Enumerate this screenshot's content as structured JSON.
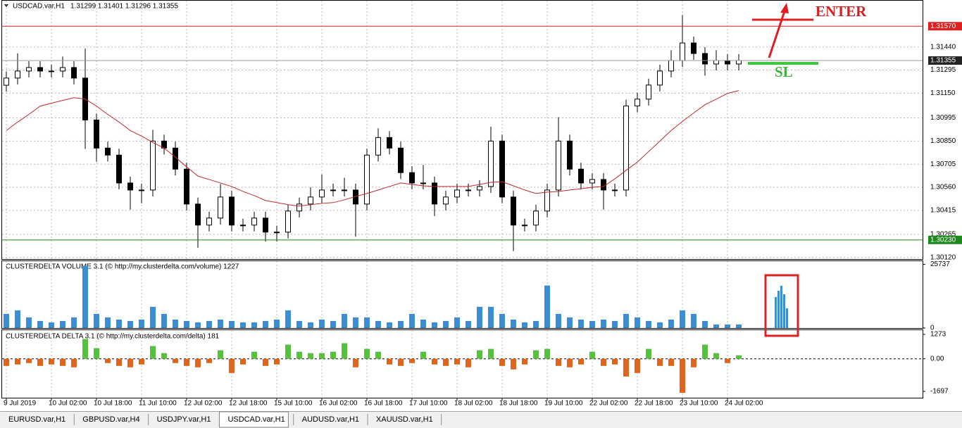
{
  "chart_data": [
    {
      "type": "candlestick",
      "title": "USDCAD.var,H1",
      "quote": "1.31299 1.31401 1.31296 1.31355",
      "categories": [
        "9 Jul 2019",
        null,
        null,
        null,
        "10 Jul 02:00",
        null,
        null,
        null,
        "10 Jul 18:00",
        null,
        null,
        null,
        "11 Jul 10:00",
        null,
        null,
        null,
        "12 Jul 02:00",
        null,
        null,
        null,
        "12 Jul 18:00",
        null,
        null,
        null,
        "15 Jul 10:00",
        null,
        null,
        null,
        "16 Jul 02:00",
        null,
        null,
        null,
        "16 Jul 18:00",
        null,
        null,
        null,
        "17 Jul 10:00",
        null,
        null,
        null,
        "18 Jul 02:00",
        null,
        null,
        null,
        "18 Jul 18:00",
        null,
        null,
        null,
        "19 Jul 10:00",
        null,
        null,
        null,
        "22 Jul 02:00",
        null,
        null,
        null,
        "22 Jul 18:00",
        null,
        null,
        null,
        "23 Jul 10:00",
        null,
        null,
        null,
        "24 Jul 02:00",
        null
      ],
      "open": [
        1.312,
        1.31245,
        1.31289,
        1.31311,
        1.31289,
        1.31289,
        1.31311,
        1.31245,
        1.30982,
        1.30806,
        1.30762,
        1.30587,
        1.30543,
        1.30543,
        1.3085,
        1.30806,
        1.30674,
        1.30455,
        1.30323,
        1.30367,
        1.30499,
        1.30323,
        1.30323,
        1.30367,
        1.30279,
        1.30279,
        1.30411,
        1.30455,
        1.30499,
        1.30543,
        1.30543,
        1.30543,
        1.30455,
        1.30762,
        1.30872,
        1.30806,
        1.30652,
        1.30587,
        1.30587,
        1.30455,
        1.30499,
        1.30543,
        1.30543,
        1.30565,
        1.3085,
        1.30499,
        1.30323,
        1.30323,
        1.30411,
        1.30543,
        1.3085,
        1.30674,
        1.30587,
        1.30609,
        1.30543,
        1.30543,
        1.3107,
        1.31113,
        1.31201,
        1.31289,
        1.31355,
        1.31465,
        1.31399,
        1.31333,
        1.31355,
        1.31333
      ],
      "high": [
        1.31285,
        1.314,
        1.31351,
        1.31351,
        1.31329,
        1.3138,
        1.31351,
        1.3143,
        1.31022,
        1.30846,
        1.30802,
        1.30627,
        1.30583,
        1.3092,
        1.3089,
        1.30846,
        1.30714,
        1.30495,
        1.30407,
        1.3058,
        1.30539,
        1.30363,
        1.30407,
        1.30407,
        1.30319,
        1.30451,
        1.30495,
        1.3056,
        1.3064,
        1.30583,
        1.3062,
        1.30583,
        1.30802,
        1.3093,
        1.30912,
        1.30846,
        1.30692,
        1.307,
        1.30627,
        1.30539,
        1.30583,
        1.30583,
        1.30605,
        1.3094,
        1.3089,
        1.30539,
        1.30363,
        1.30451,
        1.30583,
        1.31,
        1.3089,
        1.30714,
        1.30649,
        1.30649,
        1.30583,
        1.3111,
        1.31153,
        1.31241,
        1.31329,
        1.3142,
        1.3164,
        1.31505,
        1.31439,
        1.3142,
        1.31395,
        1.31395
      ],
      "low": [
        1.3116,
        1.31205,
        1.31249,
        1.31249,
        1.31249,
        1.31249,
        1.31205,
        1.308,
        1.3072,
        1.30722,
        1.30547,
        1.3042,
        1.3046,
        1.30503,
        1.30766,
        1.30634,
        1.30415,
        1.3018,
        1.30283,
        1.30327,
        1.30283,
        1.30283,
        1.30283,
        1.3022,
        1.3022,
        1.30239,
        1.30371,
        1.30415,
        1.30459,
        1.30503,
        1.30503,
        1.3025,
        1.30415,
        1.30722,
        1.30766,
        1.30612,
        1.30547,
        1.30547,
        1.3038,
        1.30415,
        1.30459,
        1.30503,
        1.30503,
        1.30525,
        1.30459,
        1.3016,
        1.30283,
        1.30283,
        1.30371,
        1.30503,
        1.30634,
        1.30547,
        1.30547,
        1.3042,
        1.30503,
        1.30503,
        1.3103,
        1.31073,
        1.31161,
        1.31249,
        1.31315,
        1.31359,
        1.3126,
        1.31293,
        1.31293,
        1.31293
      ],
      "close": [
        1.31245,
        1.31289,
        1.31311,
        1.31289,
        1.31289,
        1.31311,
        1.31245,
        1.30982,
        1.30806,
        1.30762,
        1.30587,
        1.30543,
        1.30543,
        1.3085,
        1.30806,
        1.30674,
        1.30455,
        1.30323,
        1.30367,
        1.30499,
        1.30323,
        1.30323,
        1.30367,
        1.30279,
        1.30279,
        1.30411,
        1.30455,
        1.30499,
        1.30543,
        1.30543,
        1.30543,
        1.30455,
        1.30762,
        1.30872,
        1.30806,
        1.30652,
        1.30587,
        1.30587,
        1.30455,
        1.30499,
        1.30543,
        1.30543,
        1.30565,
        1.3085,
        1.30499,
        1.30323,
        1.30323,
        1.30411,
        1.30543,
        1.3085,
        1.30674,
        1.30587,
        1.30609,
        1.30543,
        1.30543,
        1.3107,
        1.31113,
        1.31201,
        1.31289,
        1.31355,
        1.31465,
        1.31399,
        1.31333,
        1.31355,
        1.31333,
        1.31355
      ],
      "ma_values": [
        1.30916,
        1.30969,
        1.31017,
        1.31069,
        1.31087,
        1.31105,
        1.31122,
        1.31113,
        1.31069,
        1.31017,
        1.30969,
        1.30916,
        1.30881,
        1.30841,
        1.30806,
        1.30749,
        1.30688,
        1.3063,
        1.30609,
        1.30587,
        1.30565,
        1.30534,
        1.30508,
        1.30477,
        1.30464,
        1.30451,
        1.30442,
        1.30451,
        1.30459,
        1.30464,
        1.30481,
        1.30503,
        1.30521,
        1.30543,
        1.30565,
        1.30587,
        1.30578,
        1.30569,
        1.30565,
        1.30565,
        1.30565,
        1.30565,
        1.30578,
        1.30591,
        1.30595,
        1.30569,
        1.30543,
        1.30521,
        1.3053,
        1.30534,
        1.30543,
        1.30551,
        1.3056,
        1.30565,
        1.30613,
        1.30666,
        1.30718,
        1.30784,
        1.3085,
        1.30916,
        1.30973,
        1.31026,
        1.31078,
        1.31113,
        1.31149,
        1.31166
      ],
      "ma_color": "#c0282a",
      "bull_color": "#ffffff",
      "bear_color": "#000000",
      "ylim": [
        1.3011,
        1.3173
      ],
      "yticks": [
        {
          "value": 1.3144,
          "label": "1.31440"
        },
        1.31295,
        {
          "value": 1.3115,
          "label": "1.31150"
        },
        1.30995,
        {
          "value": 1.3085,
          "label": "1.30850"
        },
        1.30705,
        {
          "value": 1.3056,
          "label": "1.30560"
        },
        1.30415,
        1.30265,
        {
          "value": 1.3012,
          "label": "1.30120"
        }
      ],
      "grid": true,
      "hlines": [
        {
          "value": 1.3157,
          "label": "1.31570",
          "color": "#e02020"
        },
        {
          "value": 1.31355,
          "label": "1.31355",
          "color": "#9a9a9a"
        },
        {
          "value": 1.3023,
          "label": "1.30230",
          "color": "#1e8a1e"
        }
      ]
    },
    {
      "type": "bar",
      "title": "CLUSTERDELTA VOLUME 3.1 (© http://my.clusterdelta.com/volume) 1227",
      "values": [
        5720,
        7150,
        4290,
        2860,
        2290,
        2860,
        4290,
        25100,
        5720,
        4290,
        3430,
        2860,
        3430,
        8580,
        5720,
        3430,
        2860,
        2290,
        2860,
        3430,
        2860,
        2290,
        2290,
        2860,
        3430,
        7150,
        2860,
        2290,
        3430,
        2860,
        5720,
        4290,
        4290,
        2860,
        2290,
        2860,
        5720,
        3430,
        2290,
        2860,
        4290,
        2860,
        8580,
        8580,
        5720,
        3430,
        2290,
        2860,
        17160,
        5720,
        4290,
        3430,
        2860,
        3430,
        2860,
        5720,
        4290,
        2860,
        2290,
        3430,
        7150,
        5720,
        2860,
        1430,
        1430,
        1430
      ],
      "color": "#3b8ed6",
      "ylim": [
        0,
        27000
      ],
      "yticks": [
        0,
        25737
      ]
    },
    {
      "type": "bar",
      "title": "CLUSTERDELTA DELTA 3.1 (© http://my.clusterdelta.com/delta) 181",
      "values": [
        -370,
        -296,
        -222,
        -370,
        -296,
        -370,
        -444,
        1036,
        555,
        -222,
        -370,
        -444,
        -296,
        666,
        296,
        -222,
        -370,
        -444,
        -222,
        444,
        -740,
        -296,
        370,
        -370,
        -296,
        740,
        370,
        296,
        296,
        370,
        814,
        -444,
        518,
        370,
        -296,
        -370,
        -222,
        370,
        -296,
        -370,
        -296,
        -444,
        444,
        518,
        -370,
        -555,
        -296,
        444,
        518,
        -370,
        -444,
        -296,
        370,
        -370,
        -296,
        -925,
        -740,
        518,
        -370,
        -370,
        -1776,
        -444,
        740,
        296,
        -222,
        185
      ],
      "positive_color": "#56c040",
      "negative_color": "#e0651c",
      "ylim": [
        -2030,
        1495
      ],
      "yticks": [
        1273,
        {
          "value": 0,
          "label": "0.00"
        },
        -1697
      ]
    }
  ],
  "annotations": {
    "enter": "ENTER",
    "sl": "SL"
  },
  "tabs": [
    "EURUSD.var,H1",
    "GBPUSD.var,H4",
    "USDJPY.var,H1",
    "USDCAD.var,H1",
    "AUDUSD.var,H1",
    "XAUUSD.var,H1"
  ]
}
